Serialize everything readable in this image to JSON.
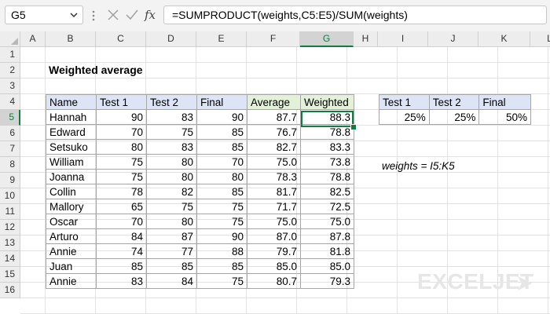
{
  "namebox": {
    "value": "G5"
  },
  "formula": {
    "text": "=SUMPRODUCT(weights,C5:E5)/SUM(weights)",
    "fx_label": "fx"
  },
  "columns": [
    "A",
    "B",
    "C",
    "D",
    "E",
    "F",
    "G",
    "H",
    "I",
    "J",
    "K",
    "L"
  ],
  "rows": [
    "1",
    "2",
    "3",
    "4",
    "5",
    "6",
    "7",
    "8",
    "9",
    "10",
    "11",
    "12",
    "13",
    "14",
    "15",
    "16"
  ],
  "selected": {
    "column": "G",
    "row": "5"
  },
  "title": "Weighted average",
  "main_table": {
    "headers": [
      "Name",
      "Test 1",
      "Test 2",
      "Final",
      "Average",
      "Weighted"
    ],
    "rows": [
      [
        "Hannah",
        "90",
        "83",
        "90",
        "87.7",
        "88.3"
      ],
      [
        "Edward",
        "70",
        "75",
        "85",
        "76.7",
        "78.8"
      ],
      [
        "Setsuko",
        "80",
        "83",
        "85",
        "82.7",
        "83.3"
      ],
      [
        "William",
        "75",
        "80",
        "70",
        "75.0",
        "73.8"
      ],
      [
        "Joanna",
        "75",
        "80",
        "80",
        "78.3",
        "78.8"
      ],
      [
        "Collin",
        "78",
        "82",
        "85",
        "81.7",
        "82.5"
      ],
      [
        "Mallory",
        "65",
        "75",
        "75",
        "71.7",
        "72.5"
      ],
      [
        "Oscar",
        "70",
        "80",
        "75",
        "75.0",
        "75.0"
      ],
      [
        "Arturo",
        "84",
        "87",
        "90",
        "87.0",
        "87.8"
      ],
      [
        "Annie",
        "74",
        "77",
        "88",
        "79.7",
        "81.8"
      ],
      [
        "Juan",
        "85",
        "85",
        "85",
        "85.0",
        "85.0"
      ],
      [
        "Annie",
        "83",
        "84",
        "75",
        "80.7",
        "79.3"
      ]
    ]
  },
  "weights_table": {
    "headers": [
      "Test 1",
      "Test 2",
      "Final"
    ],
    "values": [
      "25%",
      "25%",
      "50%"
    ]
  },
  "note": "weights = I5:K5",
  "logo": "EXCELJET",
  "colors": {
    "accent": "#107c41",
    "header_blue": "#dde4f6",
    "header_green": "#e3f1d8"
  }
}
